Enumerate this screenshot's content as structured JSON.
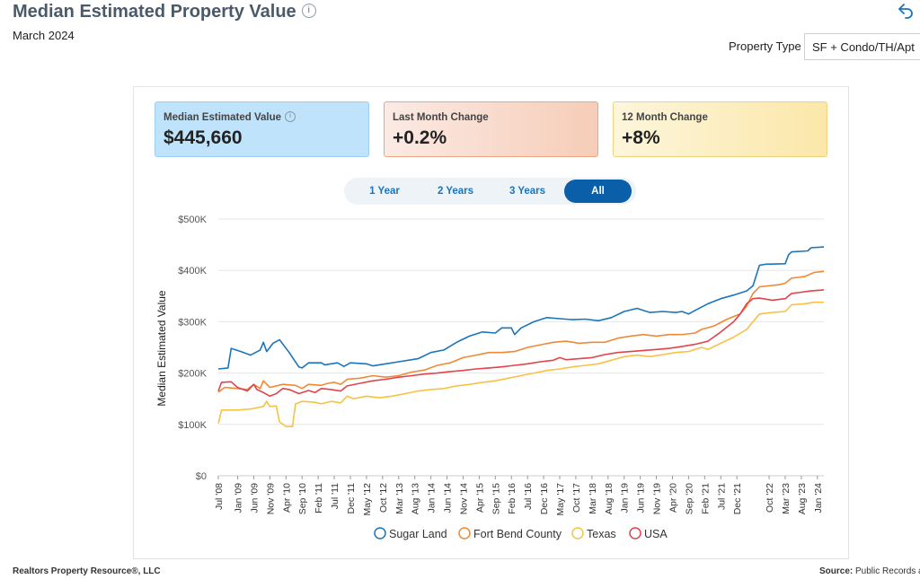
{
  "header": {
    "title": "Median Estimated Property Value",
    "subtitle": "March 2024",
    "property_type_label": "Property Type",
    "property_type_value": "SF + Condo/TH/Apt"
  },
  "cards": [
    {
      "label": "Median Estimated Value",
      "value": "$445,660"
    },
    {
      "label": "Last Month Change",
      "value": "+0.2%"
    },
    {
      "label": "12 Month Change",
      "value": "+8%"
    }
  ],
  "range_buttons": [
    {
      "label": "1 Year",
      "active": false
    },
    {
      "label": "2 Years",
      "active": false
    },
    {
      "label": "3 Years",
      "active": false
    },
    {
      "label": "All",
      "active": true
    }
  ],
  "footer": {
    "left": "Realtors Property Resource®, LLC",
    "source_label": "Source:",
    "source_value": "Public Records a"
  },
  "chart_data": {
    "type": "line",
    "ylabel": "Median Estimated Value",
    "ylim": [
      0,
      500000
    ],
    "y_ticks": [
      0,
      100000,
      200000,
      300000,
      400000,
      500000
    ],
    "y_tick_labels": [
      "$0",
      "$100K",
      "$200K",
      "$300K",
      "$400K",
      "$500K"
    ],
    "x_tick_labels": [
      "Jul '08",
      "Jan '09",
      "Jun '09",
      "Nov '09",
      "Apr '10",
      "Sep '10",
      "Feb '11",
      "Jul '11",
      "Dec '11",
      "May '12",
      "Oct '12",
      "Mar '13",
      "Aug '13",
      "Jan '14",
      "Jun '14",
      "Nov '14",
      "Apr '15",
      "Sep '15",
      "Feb '16",
      "Jul '16",
      "Dec '16",
      "May '17",
      "Oct '17",
      "Mar '18",
      "Aug '18",
      "Jan '19",
      "Jun '19",
      "Nov '19",
      "Apr '20",
      "Sep '20",
      "Feb '21",
      "Jul '21",
      "Dec '21",
      "Oct '22",
      "Mar '23",
      "Aug '23",
      "Jan '24"
    ],
    "x_tick_month_index": [
      0,
      6,
      11,
      16,
      21,
      26,
      31,
      36,
      41,
      46,
      51,
      56,
      61,
      66,
      71,
      76,
      81,
      86,
      91,
      96,
      101,
      106,
      111,
      116,
      121,
      126,
      131,
      136,
      141,
      146,
      151,
      156,
      161,
      171,
      176,
      181,
      186
    ],
    "x_range_months": [
      0,
      188
    ],
    "grid": true,
    "legend_position": "bottom",
    "series": [
      {
        "name": "Sugar Land",
        "color": "#1b75bb",
        "points": [
          [
            0,
            208000
          ],
          [
            3,
            210000
          ],
          [
            4,
            248000
          ],
          [
            7,
            242000
          ],
          [
            10,
            235000
          ],
          [
            13,
            245000
          ],
          [
            14,
            260000
          ],
          [
            15,
            242000
          ],
          [
            17,
            258000
          ],
          [
            19,
            265000
          ],
          [
            22,
            240000
          ],
          [
            25,
            212000
          ],
          [
            26,
            210000
          ],
          [
            28,
            220000
          ],
          [
            32,
            220000
          ],
          [
            33,
            216000
          ],
          [
            37,
            220000
          ],
          [
            39,
            213000
          ],
          [
            41,
            220000
          ],
          [
            46,
            218000
          ],
          [
            48,
            214000
          ],
          [
            52,
            218000
          ],
          [
            56,
            222000
          ],
          [
            62,
            228000
          ],
          [
            66,
            240000
          ],
          [
            70,
            245000
          ],
          [
            74,
            260000
          ],
          [
            78,
            272000
          ],
          [
            82,
            280000
          ],
          [
            86,
            278000
          ],
          [
            88,
            288000
          ],
          [
            91,
            288000
          ],
          [
            92,
            275000
          ],
          [
            94,
            288000
          ],
          [
            98,
            300000
          ],
          [
            102,
            308000
          ],
          [
            106,
            306000
          ],
          [
            110,
            304000
          ],
          [
            114,
            305000
          ],
          [
            118,
            302000
          ],
          [
            122,
            308000
          ],
          [
            126,
            320000
          ],
          [
            130,
            326000
          ],
          [
            134,
            318000
          ],
          [
            138,
            320000
          ],
          [
            142,
            318000
          ],
          [
            144,
            320000
          ],
          [
            146,
            315000
          ],
          [
            148,
            322000
          ],
          [
            152,
            335000
          ],
          [
            156,
            345000
          ],
          [
            160,
            352000
          ],
          [
            164,
            360000
          ],
          [
            166,
            370000
          ],
          [
            168,
            410000
          ],
          [
            170,
            412000
          ],
          [
            176,
            413000
          ],
          [
            177,
            430000
          ],
          [
            178,
            436000
          ],
          [
            183,
            438000
          ],
          [
            184,
            444000
          ],
          [
            188,
            445660
          ]
        ]
      },
      {
        "name": "Fort Bend County",
        "color": "#ee8a35",
        "points": [
          [
            0,
            163000
          ],
          [
            2,
            172000
          ],
          [
            6,
            170000
          ],
          [
            9,
            168000
          ],
          [
            11,
            178000
          ],
          [
            13,
            170000
          ],
          [
            14,
            185000
          ],
          [
            16,
            172000
          ],
          [
            20,
            178000
          ],
          [
            24,
            176000
          ],
          [
            26,
            170000
          ],
          [
            28,
            178000
          ],
          [
            32,
            176000
          ],
          [
            34,
            180000
          ],
          [
            36,
            182000
          ],
          [
            38,
            178000
          ],
          [
            40,
            188000
          ],
          [
            44,
            190000
          ],
          [
            48,
            195000
          ],
          [
            52,
            192000
          ],
          [
            56,
            195000
          ],
          [
            60,
            202000
          ],
          [
            64,
            206000
          ],
          [
            68,
            215000
          ],
          [
            72,
            220000
          ],
          [
            76,
            230000
          ],
          [
            80,
            235000
          ],
          [
            84,
            240000
          ],
          [
            88,
            240000
          ],
          [
            92,
            242000
          ],
          [
            96,
            250000
          ],
          [
            100,
            255000
          ],
          [
            104,
            260000
          ],
          [
            108,
            262000
          ],
          [
            112,
            258000
          ],
          [
            116,
            260000
          ],
          [
            120,
            260000
          ],
          [
            124,
            268000
          ],
          [
            128,
            272000
          ],
          [
            132,
            275000
          ],
          [
            136,
            272000
          ],
          [
            140,
            275000
          ],
          [
            144,
            275000
          ],
          [
            148,
            278000
          ],
          [
            150,
            285000
          ],
          [
            154,
            292000
          ],
          [
            158,
            305000
          ],
          [
            162,
            315000
          ],
          [
            164,
            330000
          ],
          [
            166,
            355000
          ],
          [
            168,
            368000
          ],
          [
            174,
            372000
          ],
          [
            176,
            375000
          ],
          [
            178,
            385000
          ],
          [
            182,
            388000
          ],
          [
            185,
            396000
          ],
          [
            188,
            398000
          ]
        ]
      },
      {
        "name": "Texas",
        "color": "#f6c244",
        "points": [
          [
            0,
            102000
          ],
          [
            1,
            128000
          ],
          [
            6,
            128000
          ],
          [
            10,
            130000
          ],
          [
            14,
            135000
          ],
          [
            15,
            145000
          ],
          [
            16,
            135000
          ],
          [
            18,
            136000
          ],
          [
            19,
            105000
          ],
          [
            21,
            96000
          ],
          [
            23,
            96000
          ],
          [
            24,
            140000
          ],
          [
            26,
            145000
          ],
          [
            30,
            143000
          ],
          [
            32,
            140000
          ],
          [
            35,
            145000
          ],
          [
            38,
            142000
          ],
          [
            40,
            155000
          ],
          [
            42,
            150000
          ],
          [
            46,
            155000
          ],
          [
            50,
            152000
          ],
          [
            54,
            155000
          ],
          [
            58,
            160000
          ],
          [
            62,
            165000
          ],
          [
            66,
            168000
          ],
          [
            70,
            170000
          ],
          [
            74,
            175000
          ],
          [
            78,
            178000
          ],
          [
            82,
            182000
          ],
          [
            86,
            185000
          ],
          [
            90,
            190000
          ],
          [
            94,
            195000
          ],
          [
            98,
            200000
          ],
          [
            102,
            205000
          ],
          [
            106,
            208000
          ],
          [
            110,
            212000
          ],
          [
            114,
            215000
          ],
          [
            118,
            218000
          ],
          [
            122,
            225000
          ],
          [
            126,
            232000
          ],
          [
            130,
            235000
          ],
          [
            134,
            232000
          ],
          [
            138,
            236000
          ],
          [
            142,
            240000
          ],
          [
            146,
            242000
          ],
          [
            150,
            250000
          ],
          [
            152,
            246000
          ],
          [
            156,
            258000
          ],
          [
            160,
            270000
          ],
          [
            164,
            285000
          ],
          [
            166,
            300000
          ],
          [
            168,
            315000
          ],
          [
            172,
            318000
          ],
          [
            176,
            320000
          ],
          [
            178,
            333000
          ],
          [
            182,
            335000
          ],
          [
            185,
            338000
          ],
          [
            188,
            338000
          ]
        ]
      },
      {
        "name": "USA",
        "color": "#e2434b",
        "points": [
          [
            0,
            165000
          ],
          [
            1,
            182000
          ],
          [
            4,
            183000
          ],
          [
            6,
            172000
          ],
          [
            9,
            165000
          ],
          [
            11,
            178000
          ],
          [
            12,
            168000
          ],
          [
            14,
            162000
          ],
          [
            16,
            155000
          ],
          [
            18,
            160000
          ],
          [
            20,
            170000
          ],
          [
            22,
            168000
          ],
          [
            25,
            160000
          ],
          [
            28,
            166000
          ],
          [
            30,
            162000
          ],
          [
            32,
            170000
          ],
          [
            35,
            168000
          ],
          [
            38,
            165000
          ],
          [
            40,
            175000
          ],
          [
            44,
            180000
          ],
          [
            48,
            185000
          ],
          [
            52,
            188000
          ],
          [
            56,
            192000
          ],
          [
            60,
            195000
          ],
          [
            64,
            198000
          ],
          [
            68,
            200000
          ],
          [
            72,
            203000
          ],
          [
            76,
            205000
          ],
          [
            80,
            208000
          ],
          [
            84,
            210000
          ],
          [
            88,
            212000
          ],
          [
            92,
            215000
          ],
          [
            96,
            218000
          ],
          [
            100,
            222000
          ],
          [
            104,
            225000
          ],
          [
            106,
            230000
          ],
          [
            108,
            226000
          ],
          [
            112,
            228000
          ],
          [
            116,
            230000
          ],
          [
            120,
            236000
          ],
          [
            124,
            240000
          ],
          [
            128,
            242000
          ],
          [
            132,
            244000
          ],
          [
            136,
            246000
          ],
          [
            140,
            248000
          ],
          [
            144,
            252000
          ],
          [
            148,
            256000
          ],
          [
            152,
            262000
          ],
          [
            156,
            280000
          ],
          [
            160,
            300000
          ],
          [
            162,
            315000
          ],
          [
            164,
            335000
          ],
          [
            166,
            345000
          ],
          [
            168,
            346000
          ],
          [
            172,
            342000
          ],
          [
            176,
            345000
          ],
          [
            178,
            355000
          ],
          [
            184,
            360000
          ],
          [
            188,
            362000
          ]
        ]
      }
    ]
  }
}
